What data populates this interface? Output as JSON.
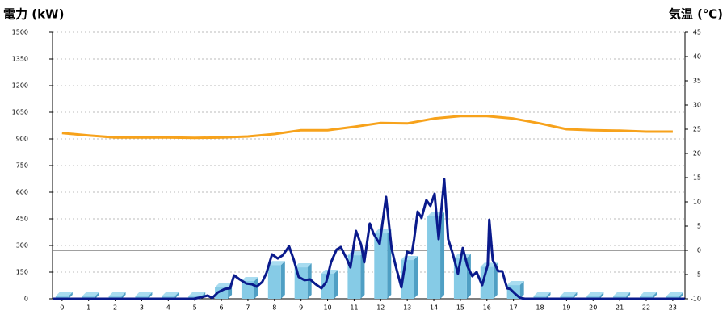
{
  "chart_data": {
    "type": "combo",
    "y_title": "電力 (kW)",
    "y2_title": "気温 (℃)",
    "title_color": "#1a6db5",
    "y2_title_color": "#f0901e",
    "categories": [
      "0",
      "1",
      "2",
      "3",
      "4",
      "5",
      "6",
      "7",
      "8",
      "9",
      "10",
      "11",
      "12",
      "13",
      "14",
      "15",
      "16",
      "17",
      "18",
      "19",
      "20",
      "21",
      "22",
      "23"
    ],
    "xlim": [
      -0.36,
      23.46
    ],
    "ylim": [
      0,
      1500
    ],
    "yticks": [
      0,
      150,
      300,
      450,
      600,
      750,
      900,
      1050,
      1200,
      1350,
      1500
    ],
    "y2lim": [
      -10,
      45
    ],
    "y2ticks": [
      -10,
      -5,
      0,
      5,
      10,
      15,
      20,
      25,
      30,
      35,
      40,
      45
    ],
    "grid": true,
    "y2_zero_line": true,
    "series": [
      {
        "type": "bar",
        "color": "#86cbe6",
        "values": [
          15,
          15,
          15,
          15,
          15,
          15,
          64,
          100,
          190,
          177,
          141,
          245,
          368,
          218,
          464,
          230,
          180,
          77,
          15,
          15,
          15,
          15,
          15,
          15
        ]
      },
      {
        "type": "line",
        "color": "#0a1a8c",
        "x": [
          -0.35,
          4.96,
          5.26,
          5.48,
          5.66,
          5.87,
          6.12,
          6.33,
          6.48,
          6.69,
          6.94,
          7.15,
          7.33,
          7.54,
          7.7,
          7.91,
          8.12,
          8.31,
          8.55,
          8.73,
          8.91,
          9.13,
          9.34,
          9.55,
          9.77,
          9.95,
          10.13,
          10.34,
          10.5,
          10.74,
          10.86,
          11.07,
          11.26,
          11.38,
          11.59,
          11.74,
          11.96,
          12.2,
          12.41,
          12.57,
          12.78,
          12.99,
          13.17,
          13.26,
          13.39,
          13.54,
          13.72,
          13.87,
          14.03,
          14.18,
          14.39,
          14.54,
          14.72,
          14.91,
          15.09,
          15.27,
          15.45,
          15.61,
          15.82,
          16.03,
          16.09,
          16.22,
          16.43,
          16.58,
          16.76,
          16.88,
          17.07,
          17.25,
          17.43,
          23.45
        ],
        "values": [
          0,
          0,
          9,
          18,
          5,
          36,
          55,
          59,
          132,
          109,
          86,
          82,
          68,
          95,
          145,
          250,
          227,
          245,
          295,
          218,
          123,
          105,
          109,
          82,
          59,
          95,
          205,
          277,
          291,
          218,
          177,
          382,
          305,
          205,
          423,
          364,
          309,
          573,
          282,
          182,
          64,
          264,
          255,
          336,
          491,
          455,
          555,
          523,
          591,
          336,
          673,
          336,
          250,
          141,
          286,
          182,
          127,
          150,
          77,
          191,
          445,
          218,
          155,
          155,
          59,
          55,
          27,
          5,
          0,
          0
        ]
      },
      {
        "type": "line",
        "axis": "y2",
        "color": "#f7a21b",
        "values": [
          24.2,
          23.7,
          23.3,
          23.3,
          23.3,
          23.2,
          23.3,
          23.5,
          24.0,
          24.8,
          24.8,
          25.5,
          26.3,
          26.2,
          27.2,
          27.7,
          27.7,
          27.2,
          26.2,
          25.0,
          24.8,
          24.7,
          24.5,
          24.5
        ]
      }
    ]
  }
}
